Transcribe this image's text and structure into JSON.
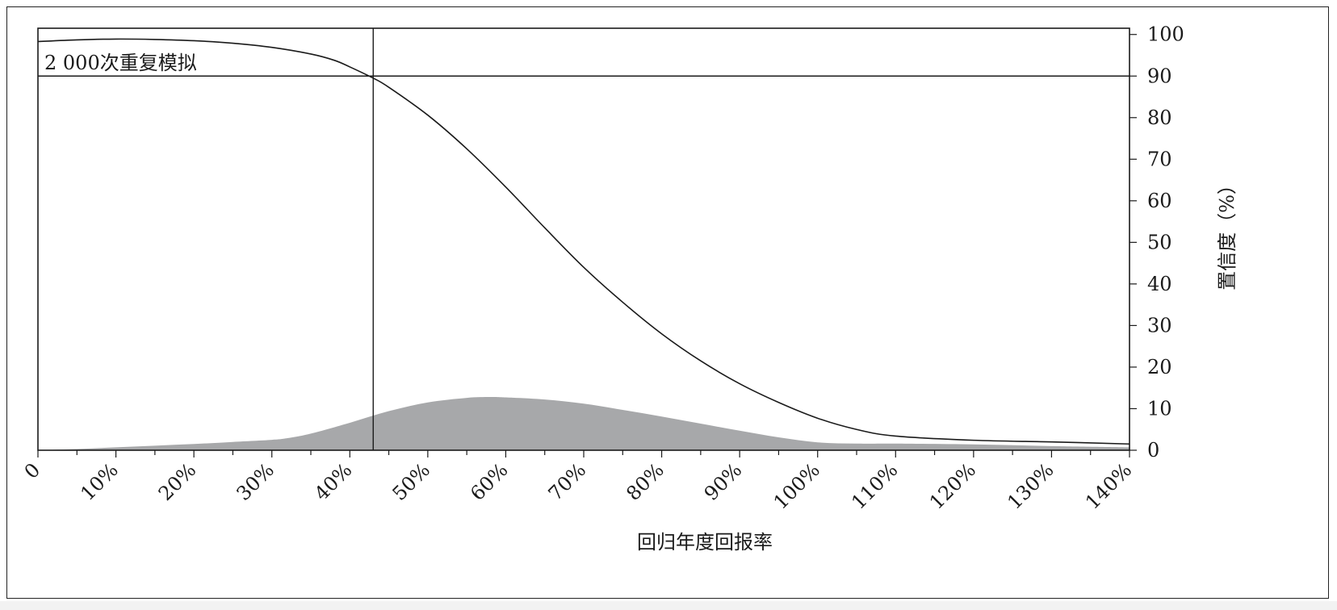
{
  "chart_data": {
    "type": "area",
    "title": "",
    "annotation": "2 000次重复模拟",
    "xlabel": "回归年度回报率",
    "ylabel": "置信度（%）",
    "x_ticks": [
      0,
      10,
      20,
      30,
      40,
      50,
      60,
      70,
      80,
      90,
      100,
      110,
      120,
      130,
      140
    ],
    "x_tick_labels": [
      "0",
      "10%",
      "20%",
      "30%",
      "40%",
      "50%",
      "60%",
      "70%",
      "80%",
      "90%",
      "100%",
      "110%",
      "120%",
      "130%",
      "140%"
    ],
    "y_ticks": [
      0,
      10,
      20,
      30,
      40,
      50,
      60,
      70,
      80,
      90,
      100
    ],
    "y_tick_labels": [
      "0",
      "10",
      "20",
      "30",
      "40",
      "50",
      "60",
      "70",
      "80",
      "90",
      "100"
    ],
    "xlim": [
      0,
      140
    ],
    "ylim": [
      0,
      101.5
    ],
    "y_axis_side": "right",
    "grid": false,
    "colors": {
      "area": "#a7a8aa",
      "line": "#1a1a1a"
    },
    "series": [
      {
        "kind": "line",
        "x": [
          0,
          5,
          10,
          15,
          20,
          25,
          30,
          35,
          38,
          40,
          43,
          45,
          50,
          55,
          60,
          65,
          70,
          75,
          80,
          85,
          90,
          95,
          100,
          105,
          110,
          120,
          130,
          140
        ],
        "y": [
          98.3,
          98.7,
          98.9,
          98.8,
          98.5,
          97.9,
          96.9,
          95.3,
          93.8,
          92.2,
          89.5,
          87.3,
          80.6,
          72.5,
          63.3,
          53.5,
          44.0,
          35.6,
          28.0,
          21.5,
          16.0,
          11.5,
          7.7,
          5.0,
          3.4,
          2.4,
          2.0,
          1.5
        ]
      },
      {
        "kind": "area",
        "x": [
          0,
          5,
          10,
          15,
          20,
          25,
          30,
          32,
          35,
          40,
          45,
          50,
          55,
          58,
          60,
          65,
          70,
          75,
          80,
          85,
          90,
          95,
          100,
          105,
          110,
          120,
          130,
          140
        ],
        "y": [
          0,
          0.3,
          0.7,
          1.1,
          1.5,
          2.0,
          2.5,
          2.9,
          4.0,
          6.6,
          9.4,
          11.5,
          12.6,
          12.8,
          12.7,
          12.2,
          11.2,
          9.7,
          8.1,
          6.4,
          4.7,
          3.1,
          1.9,
          1.6,
          1.6,
          1.4,
          1.0,
          0.7
        ]
      }
    ],
    "reference_lines": [
      {
        "type": "horizontal",
        "y": 90
      },
      {
        "type": "vertical",
        "x": 43
      }
    ]
  }
}
